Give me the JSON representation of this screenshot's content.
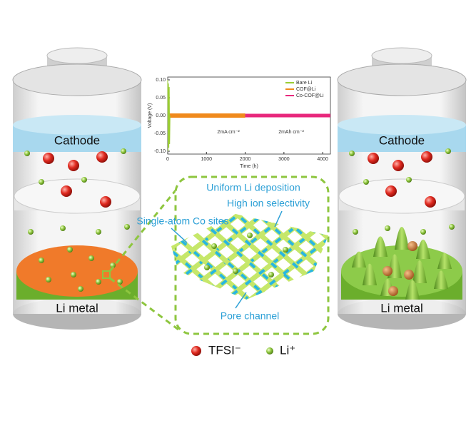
{
  "left_battery": {
    "cathode": "Cathode",
    "anode": "Li metal"
  },
  "right_battery": {
    "cathode": "Cathode",
    "anode": "Li metal"
  },
  "inset_chart": {
    "type": "line",
    "ylabel": "Voltage (V)",
    "xlabel": "Time (h)",
    "xlim": [
      0,
      4200
    ],
    "ylim": [
      -0.1,
      0.1
    ],
    "xticks": [
      0,
      1000,
      2000,
      3000,
      4000
    ],
    "yticks": [
      {
        "value": 0.1,
        "label": "0.10"
      },
      {
        "value": 0.05,
        "label": "0.05"
      },
      {
        "value": 0,
        "label": "0.00"
      },
      {
        "value": -0.05,
        "label": "-0.05"
      },
      {
        "value": -0.1,
        "label": "-0.10"
      }
    ],
    "series": [
      {
        "name": "Co-COF@Li",
        "color": "#e8287c",
        "x": [
          0,
          4200
        ],
        "values": [
          0,
          0
        ]
      },
      {
        "name": "COF@Li",
        "color": "#f08a1c",
        "x": [
          0,
          2000
        ],
        "values": [
          0,
          0
        ]
      },
      {
        "name": "Bare Li",
        "color": "#9acd32",
        "x": [
          0,
          10,
          20,
          30,
          40,
          50,
          60
        ],
        "values": [
          0.1,
          -0.1,
          0.09,
          -0.09,
          0.08,
          -0.08,
          0
        ]
      }
    ],
    "annotations": [
      "2mA cm⁻²",
      "2mAh cm⁻²"
    ]
  },
  "mechanism": {
    "labels": [
      "Uniform Li deposition",
      "High ion selectivity",
      "Single-atom Co sites",
      "Pore channel"
    ]
  },
  "legend": {
    "anion": "TFSI⁻",
    "cation": "Li⁺"
  }
}
